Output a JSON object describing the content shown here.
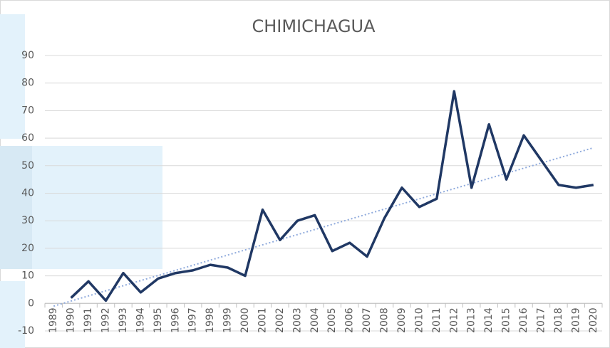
{
  "chart_data": {
    "type": "line",
    "title": "CHIMICHAGUA",
    "categories": [
      "1989",
      "1990",
      "1991",
      "1992",
      "1993",
      "1994",
      "1995",
      "1996",
      "1997",
      "1998",
      "1999",
      "2000",
      "2001",
      "2002",
      "2003",
      "2004",
      "2005",
      "2006",
      "2007",
      "2008",
      "2009",
      "2010",
      "2011",
      "2012",
      "2013",
      "2014",
      "2015",
      "2016",
      "2017",
      "2018",
      "2019",
      "2020"
    ],
    "series": [
      {
        "color": "#203864",
        "values": [
          null,
          2,
          8,
          1,
          11,
          4,
          9,
          11,
          12,
          14,
          13,
          10,
          34,
          23,
          30,
          32,
          19,
          22,
          17,
          31,
          42,
          35,
          38,
          77,
          42,
          65,
          45,
          61,
          52,
          43,
          42,
          43
        ]
      }
    ],
    "trendline": {
      "color": "#8faadc",
      "dashed": true,
      "values": [
        -1,
        56.5
      ]
    },
    "ylim": [
      -10,
      90
    ],
    "yticks": [
      -10,
      0,
      10,
      20,
      30,
      40,
      50,
      60,
      70,
      80,
      90
    ],
    "grid": true
  }
}
